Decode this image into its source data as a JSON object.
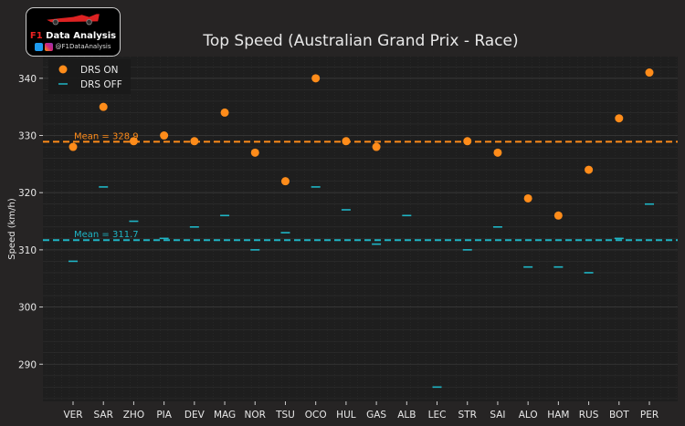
{
  "logo": {
    "title_prefix": "F1",
    "title": "Data Analysis",
    "handle": "@F1DataAnalysis"
  },
  "chart_data": {
    "type": "scatter",
    "title": "Top Speed (Australian Grand Prix - Race)",
    "xlabel": "",
    "ylabel": "Speed (km/h)",
    "ylim": [
      283.5,
      343.8
    ],
    "yticks": [
      290,
      300,
      310,
      320,
      330,
      340
    ],
    "grid": true,
    "legend_position": "top-left",
    "categories": [
      "VER",
      "SAR",
      "ZHO",
      "PIA",
      "DEV",
      "MAG",
      "NOR",
      "TSU",
      "OCO",
      "HUL",
      "GAS",
      "ALB",
      "LEC",
      "STR",
      "SAI",
      "ALO",
      "HAM",
      "RUS",
      "BOT",
      "PER"
    ],
    "series": [
      {
        "name": "DRS ON",
        "marker": "circle",
        "color": "#ff8c1a",
        "values": [
          328,
          335,
          329,
          330,
          329,
          334,
          327,
          322,
          340,
          329,
          328,
          null,
          null,
          329,
          327,
          319,
          316,
          324,
          333,
          341
        ]
      },
      {
        "name": "DRS OFF",
        "marker": "hline",
        "color": "#1fb5c5",
        "values": [
          308,
          321,
          315,
          312,
          314,
          316,
          310,
          313,
          321,
          317,
          311,
          316,
          286,
          310,
          314,
          307,
          307,
          306,
          312,
          318
        ]
      }
    ],
    "mean_lines": [
      {
        "label": "Mean = 328.9",
        "value": 328.9,
        "color": "#ff8c1a"
      },
      {
        "label": "Mean = 311.7",
        "value": 311.7,
        "color": "#1fb5c5"
      }
    ]
  }
}
